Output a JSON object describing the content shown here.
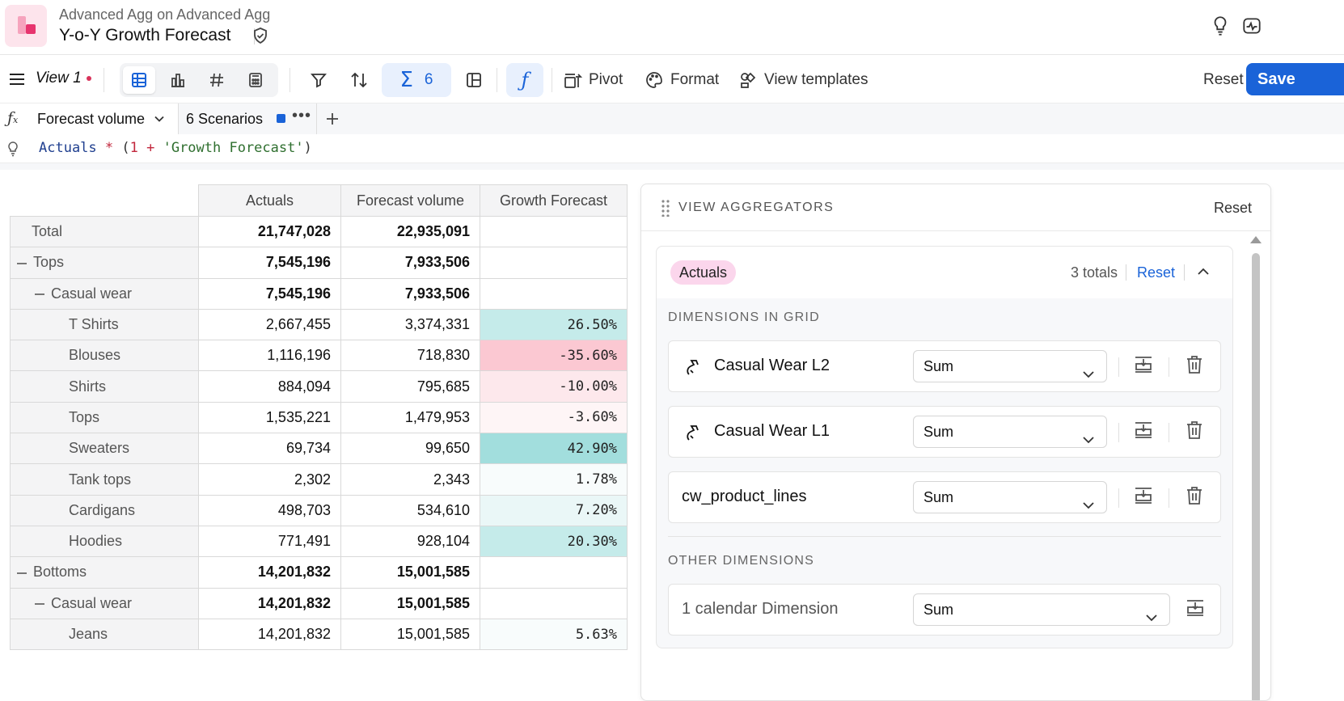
{
  "header": {
    "breadcrumb": "Advanced Agg on Advanced Agg",
    "title": "Y-o-Y Growth Forecast"
  },
  "toolbar": {
    "view_name": "View 1",
    "sum_count": "6",
    "pivot_label": "Pivot",
    "format_label": "Format",
    "templates_label": "View templates",
    "reset_label": "Reset",
    "save_label": "Save"
  },
  "formula_tabs": {
    "active_tab": "Forecast volume",
    "scenarios_tab": "6 Scenarios"
  },
  "formula": {
    "id1": "Actuals",
    "op1": " * ",
    "lp": "(",
    "num": "1",
    "op2": " + ",
    "str": "'Growth Forecast'",
    "rp": ")"
  },
  "grid": {
    "columns": [
      "Actuals",
      "Forecast volume",
      "Growth Forecast"
    ],
    "rows": [
      {
        "label": "Total",
        "actuals": "21,747,028",
        "forecast": "22,935,091",
        "growth": ""
      },
      {
        "label": "Tops",
        "actuals": "7,545,196",
        "forecast": "7,933,506",
        "growth": ""
      },
      {
        "label": "Casual wear",
        "actuals": "7,545,196",
        "forecast": "7,933,506",
        "growth": ""
      },
      {
        "label": "T Shirts",
        "actuals": "2,667,455",
        "forecast": "3,374,331",
        "growth": "26.50%"
      },
      {
        "label": "Blouses",
        "actuals": "1,116,196",
        "forecast": "718,830",
        "growth": "-35.60%"
      },
      {
        "label": "Shirts",
        "actuals": "884,094",
        "forecast": "795,685",
        "growth": "-10.00%"
      },
      {
        "label": "Tops",
        "actuals": "1,535,221",
        "forecast": "1,479,953",
        "growth": "-3.60%"
      },
      {
        "label": "Sweaters",
        "actuals": "69,734",
        "forecast": "99,650",
        "growth": "42.90%"
      },
      {
        "label": "Tank tops",
        "actuals": "2,302",
        "forecast": "2,343",
        "growth": "1.78%"
      },
      {
        "label": "Cardigans",
        "actuals": "498,703",
        "forecast": "534,610",
        "growth": "7.20%"
      },
      {
        "label": "Hoodies",
        "actuals": "771,491",
        "forecast": "928,104",
        "growth": "20.30%"
      },
      {
        "label": "Bottoms",
        "actuals": "14,201,832",
        "forecast": "15,001,585",
        "growth": ""
      },
      {
        "label": "Casual wear",
        "actuals": "14,201,832",
        "forecast": "15,001,585",
        "growth": ""
      },
      {
        "label": "Jeans",
        "actuals": "14,201,832",
        "forecast": "15,001,585",
        "growth": "5.63%"
      }
    ],
    "colors": {
      "teal_strong": "#a2dedd",
      "teal_mid": "#c5ebea",
      "teal_light": "#eaf7f7",
      "pink_strong": "#fbc8d2",
      "pink_light": "#fde8ec",
      "pink_faint": "#fef5f6",
      "near_white": "#f8fcfc"
    }
  },
  "panel": {
    "title": "VIEW AGGREGATORS",
    "reset_label": "Reset",
    "badge": "Actuals",
    "totals": "3 totals",
    "card_reset": "Reset",
    "dims_in_grid_label": "DIMENSIONS IN GRID",
    "other_dims_label": "OTHER DIMENSIONS",
    "dims": [
      {
        "name": "Casual Wear L2",
        "agg": "Sum"
      },
      {
        "name": "Casual Wear L1",
        "agg": "Sum"
      },
      {
        "name": "cw_product_lines",
        "agg": "Sum"
      }
    ],
    "other": {
      "name": "1 calendar Dimension",
      "agg": "Sum"
    }
  }
}
